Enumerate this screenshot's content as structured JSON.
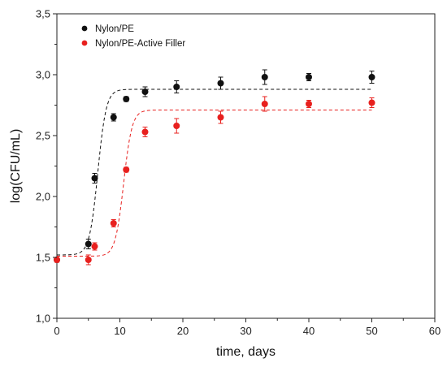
{
  "chart_data": {
    "type": "scatter",
    "xlabel": "time, days",
    "ylabel": "log(CFU/mL)",
    "xlim": [
      0,
      60
    ],
    "ylim": [
      1.0,
      3.5
    ],
    "x_ticks": [
      0,
      10,
      20,
      30,
      40,
      50,
      60
    ],
    "y_ticks": [
      1.0,
      1.5,
      2.0,
      2.5,
      3.0,
      3.5
    ],
    "x_tick_labels": [
      "0",
      "10",
      "20",
      "30",
      "40",
      "50",
      "60"
    ],
    "y_tick_labels": [
      "1,0",
      "1,5",
      "2,0",
      "2,5",
      "3,0",
      "3,5"
    ],
    "grid": false,
    "legend_position": "top-left",
    "series": [
      {
        "name": "Nylon/PE",
        "color": "#111111",
        "x": [
          0,
          5,
          6,
          9,
          11,
          14,
          19,
          26,
          33,
          40,
          50
        ],
        "y": [
          1.48,
          1.61,
          2.15,
          2.65,
          2.8,
          2.86,
          2.9,
          2.93,
          2.98,
          2.98,
          2.98
        ],
        "error": [
          0.02,
          0.04,
          0.04,
          0.03,
          0.02,
          0.04,
          0.05,
          0.05,
          0.06,
          0.03,
          0.05
        ],
        "fit": {
          "style": "dashed",
          "lower": 1.52,
          "upper": 2.88,
          "midpoint": 6.5,
          "rate": 1.5
        }
      },
      {
        "name": "Nylon/PE-Active Filler",
        "color": "#e8201e",
        "x": [
          0,
          5,
          6,
          9,
          11,
          14,
          19,
          26,
          33,
          40,
          50
        ],
        "y": [
          1.48,
          1.48,
          1.59,
          1.78,
          2.22,
          2.53,
          2.58,
          2.65,
          2.76,
          2.76,
          2.77
        ],
        "error": [
          0.02,
          0.04,
          0.03,
          0.03,
          0.02,
          0.04,
          0.06,
          0.05,
          0.06,
          0.03,
          0.04
        ],
        "fit": {
          "style": "dashed",
          "lower": 1.51,
          "upper": 2.71,
          "midpoint": 10.6,
          "rate": 1.5
        }
      }
    ]
  }
}
